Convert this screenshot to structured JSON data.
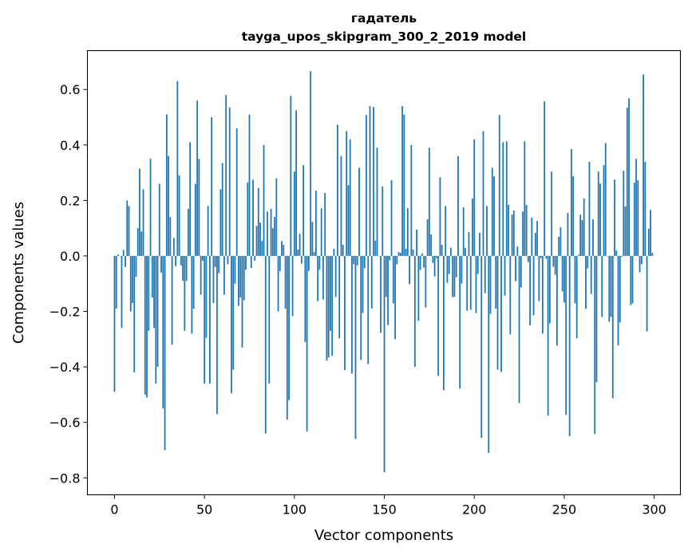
{
  "chart_data": {
    "type": "bar",
    "title": "гадатель",
    "subtitle": "tayga_upos_skipgram_300_2_2019 model",
    "xlabel": "Vector components",
    "ylabel": "Components values",
    "xlim": [
      -15.07,
      314.6
    ],
    "ylim": [
      -0.861,
      0.74
    ],
    "xticks": [
      0,
      50,
      100,
      150,
      200,
      250,
      300
    ],
    "xtick_labels": [
      "0",
      "50",
      "100",
      "150",
      "200",
      "250",
      "300"
    ],
    "yticks": [
      0.6,
      0.4,
      0.2,
      0.0,
      -0.2,
      -0.4,
      -0.6,
      -0.8
    ],
    "ytick_labels": [
      "0.6",
      "0.4",
      "0.2",
      "0.0",
      "−0.2",
      "−0.4",
      "−0.6",
      "−0.8"
    ],
    "grid": false,
    "bar_width": 0.8,
    "color": "#1f77b4",
    "values": [
      -0.49,
      -0.19,
      0.005,
      0.0,
      -0.26,
      0.022,
      -0.04,
      0.2,
      0.18,
      -0.2,
      -0.17,
      -0.42,
      -0.075,
      0.1,
      0.315,
      0.088,
      0.24,
      -0.5,
      -0.51,
      -0.27,
      0.35,
      -0.15,
      -0.26,
      -0.46,
      -0.4,
      0.26,
      -0.06,
      -0.55,
      -0.7,
      0.51,
      0.36,
      0.14,
      -0.32,
      0.065,
      -0.037,
      0.63,
      0.29,
      -0.034,
      -0.09,
      -0.27,
      -0.09,
      0.17,
      0.41,
      -0.28,
      -0.19,
      0.26,
      0.56,
      0.35,
      -0.14,
      -0.017,
      -0.46,
      -0.295,
      0.18,
      -0.46,
      0.5,
      -0.17,
      -0.04,
      -0.57,
      -0.062,
      0.24,
      0.335,
      -0.14,
      0.58,
      -0.03,
      0.535,
      -0.495,
      -0.41,
      -0.1,
      0.46,
      -0.18,
      -0.15,
      -0.33,
      -0.16,
      -0.05,
      0.265,
      0.51,
      -0.043,
      0.275,
      -0.017,
      0.108,
      0.245,
      0.12,
      0.054,
      0.4,
      -0.64,
      0.16,
      -0.46,
      0.17,
      0.1,
      0.14,
      0.28,
      -0.2,
      -0.055,
      0.054,
      0.04,
      -0.19,
      -0.59,
      -0.52,
      0.577,
      -0.217,
      0.304,
      0.525,
      0.023,
      0.08,
      -0.028,
      0.327,
      -0.31,
      -0.633,
      -0.054,
      0.666,
      0.123,
      0.014,
      0.235,
      -0.163,
      -0.05,
      0.172,
      -0.157,
      0.227,
      -0.378,
      -0.366,
      -0.27,
      -0.36,
      0.026,
      -0.148,
      0.473,
      -0.297,
      0.36,
      0.04,
      -0.412,
      0.45,
      0.255,
      0.42,
      -0.424,
      -0.03,
      -0.66,
      -0.034,
      0.318,
      -0.375,
      -0.206,
      -0.045,
      0.508,
      -0.39,
      0.54,
      -0.19,
      0.537,
      0.055,
      0.39,
      0.0,
      -0.277,
      0.25,
      -0.78,
      -0.148,
      -0.249,
      -0.016,
      0.273,
      -0.171,
      -0.3,
      -0.03,
      0.014,
      0.011,
      0.54,
      0.51,
      0.026,
      0.172,
      -0.102,
      0.4,
      0.023,
      -0.4,
      0.095,
      -0.234,
      -0.05,
      0.009,
      -0.042,
      -0.186,
      0.132,
      0.39,
      0.077,
      -0.025,
      -0.074,
      -0.008,
      -0.432,
      0.284,
      0.04,
      -0.484,
      0.18,
      -0.097,
      -0.065,
      0.029,
      -0.148,
      -0.148,
      -0.077,
      0.36,
      -0.478,
      -0.1,
      0.175,
      0.029,
      -0.197,
      0.086,
      -0.194,
      0.207,
      0.42,
      -0.206,
      -0.065,
      0.083,
      -0.656,
      0.45,
      -0.134,
      0.18,
      -0.71,
      -0.209,
      0.318,
      0.287,
      -0.19,
      -0.41,
      0.508,
      -0.418,
      0.41,
      -0.143,
      0.413,
      0.184,
      -0.283,
      0.149,
      0.164,
      -0.091,
      0.034,
      -0.53,
      -0.114,
      0.16,
      0.413,
      0.184,
      -0.022,
      -0.25,
      0.138,
      -0.214,
      0.083,
      0.126,
      -0.163,
      -0.008,
      -0.28,
      0.557,
      -0.01,
      -0.576,
      -0.243,
      0.304,
      -0.039,
      -0.068,
      -0.323,
      0.069,
      0.103,
      -0.128,
      -0.168,
      -0.573,
      0.155,
      -0.65,
      0.385,
      0.287,
      -0.171,
      -0.297,
      0.004,
      0.149,
      0.129,
      0.207,
      -0.191,
      -0.045,
      0.339,
      -0.137,
      0.132,
      -0.642,
      -0.455,
      0.304,
      0.261,
      -0.22,
      0.327,
      0.407,
      0.0,
      -0.237,
      -0.22,
      -0.513,
      0.275,
      0.02,
      -0.323,
      -0.24,
      -0.003,
      0.307,
      0.178,
      0.534,
      0.568,
      -0.177,
      -0.171,
      0.264,
      0.35,
      0.273,
      -0.059,
      -0.03,
      0.654,
      0.339,
      -0.272,
      0.098,
      0.166,
      0.011
    ]
  }
}
